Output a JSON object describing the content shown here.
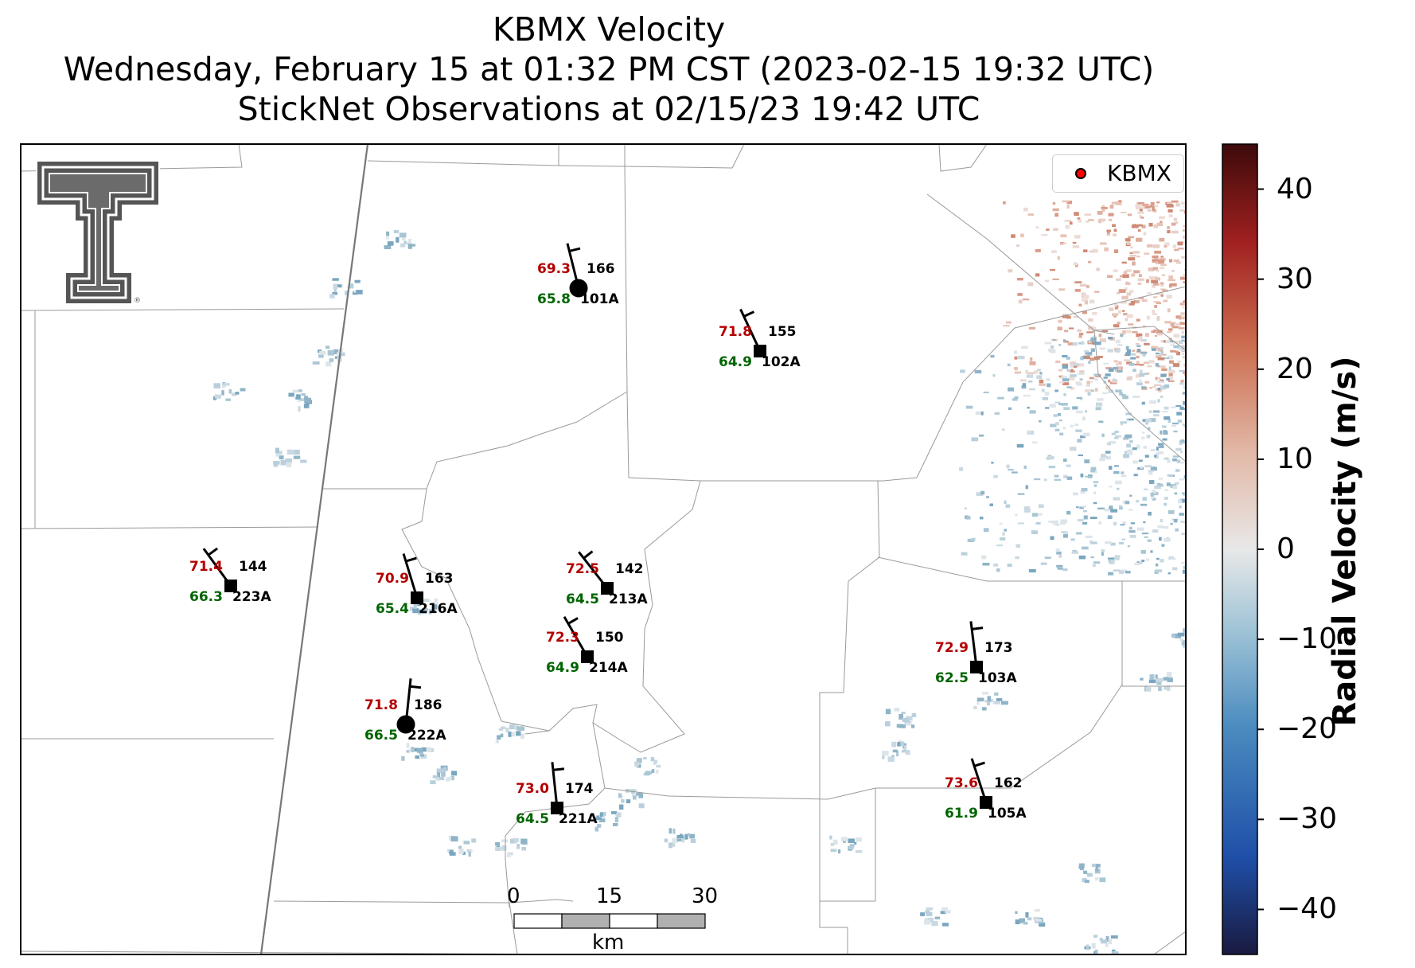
{
  "title": {
    "line1": "KBMX Velocity",
    "line2": "Wednesday, February 15 at 01:32 PM CST (2023-02-15 19:32 UTC)",
    "line3": "StickNet Observations at 02/15/23 19:42 UTC"
  },
  "legend": {
    "label": "KBMX",
    "marker_color": "#ff0000"
  },
  "logo": {
    "name": "texas-tech-double-t-logo"
  },
  "colorbar": {
    "label": "Radial Velocity (m/s)",
    "ticks": [
      "40",
      "30",
      "20",
      "10",
      "0",
      "−10",
      "−20",
      "−30",
      "−40"
    ],
    "tick_values": [
      40,
      30,
      20,
      10,
      0,
      -10,
      -20,
      -30,
      -40
    ],
    "range": [
      -45,
      45
    ],
    "colors": [
      "#1a1a40",
      "#1f4fa8",
      "#4a8bbf",
      "#9fc3d6",
      "#e8e8e8",
      "#e2b8a6",
      "#cc6e50",
      "#a02020",
      "#3d0a0a"
    ]
  },
  "scale_bar": {
    "ticks": [
      "0",
      "15",
      "30"
    ],
    "unit": "km"
  },
  "stations": [
    {
      "id": "101A",
      "dir": "166",
      "temp": "69.3",
      "dew": "65.8",
      "marker": "circle"
    },
    {
      "id": "102A",
      "dir": "155",
      "temp": "71.8",
      "dew": "64.9",
      "marker": "square"
    },
    {
      "id": "223A",
      "dir": "144",
      "temp": "71.4",
      "dew": "66.3",
      "marker": "square"
    },
    {
      "id": "216A",
      "dir": "163",
      "temp": "70.9",
      "dew": "65.4",
      "marker": "square"
    },
    {
      "id": "213A",
      "dir": "142",
      "temp": "72.5",
      "dew": "64.5",
      "marker": "square"
    },
    {
      "id": "214A",
      "dir": "150",
      "temp": "72.3",
      "dew": "64.9",
      "marker": "square"
    },
    {
      "id": "222A",
      "dir": "186",
      "temp": "71.8",
      "dew": "66.5",
      "marker": "circle"
    },
    {
      "id": "221A",
      "dir": "174",
      "temp": "73.0",
      "dew": "64.5",
      "marker": "square"
    },
    {
      "id": "103A",
      "dir": "173",
      "temp": "72.9",
      "dew": "62.5",
      "marker": "square"
    },
    {
      "id": "105A",
      "dir": "162",
      "temp": "73.6",
      "dew": "61.9",
      "marker": "square"
    }
  ]
}
